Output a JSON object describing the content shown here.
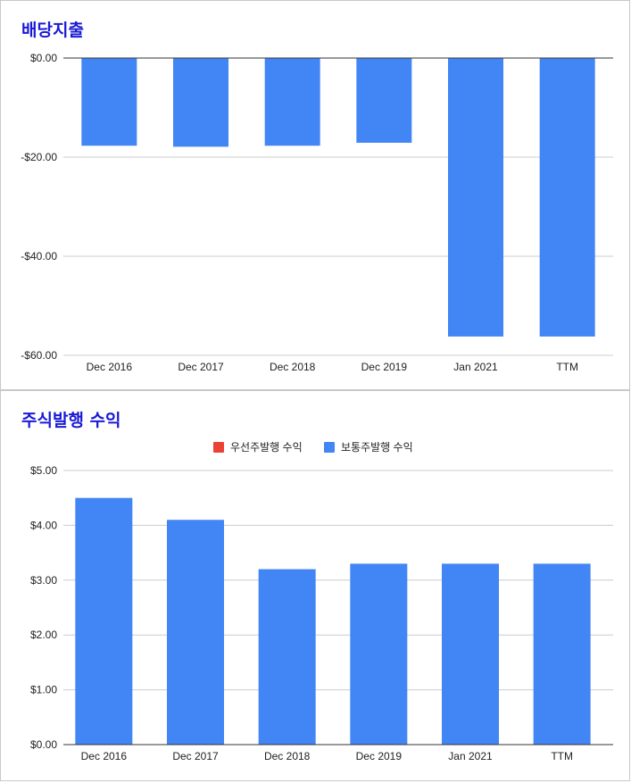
{
  "chart_data": [
    {
      "type": "bar",
      "title": "배당지출",
      "categories": [
        "Dec 2016",
        "Dec 2017",
        "Dec 2018",
        "Dec 2019",
        "Jan 2021",
        "TTM"
      ],
      "series": [
        {
          "name": "",
          "values": [
            -17.7,
            -17.9,
            -17.7,
            -17.1,
            -56.2,
            -56.2
          ]
        }
      ],
      "yticks": [
        "$0.00",
        "-$20.00",
        "-$40.00",
        "-$60.00"
      ],
      "ylim": [
        -60,
        0
      ],
      "grid": true,
      "legend": [],
      "colors": {
        "bar": "#4285f4",
        "grid": "#cccccc",
        "axis": "#333333"
      }
    },
    {
      "type": "bar",
      "title": "주식발행 수익",
      "categories": [
        "Dec 2016",
        "Dec 2017",
        "Dec 2018",
        "Dec 2019",
        "Jan 2021",
        "TTM"
      ],
      "series": [
        {
          "name": "우선주발행 수익",
          "values": [
            0,
            0,
            0,
            0,
            0,
            0
          ],
          "color": "#ea4335"
        },
        {
          "name": "보통주발행 수익",
          "values": [
            4.5,
            4.1,
            3.2,
            3.3,
            3.3,
            3.3
          ],
          "color": "#4285f4"
        }
      ],
      "yticks": [
        "$0.00",
        "$1.00",
        "$2.00",
        "$3.00",
        "$4.00",
        "$5.00"
      ],
      "ylim": [
        0,
        5
      ],
      "grid": true,
      "legend_position": "top-center",
      "colors": {
        "grid": "#cccccc",
        "axis": "#333333"
      }
    }
  ]
}
